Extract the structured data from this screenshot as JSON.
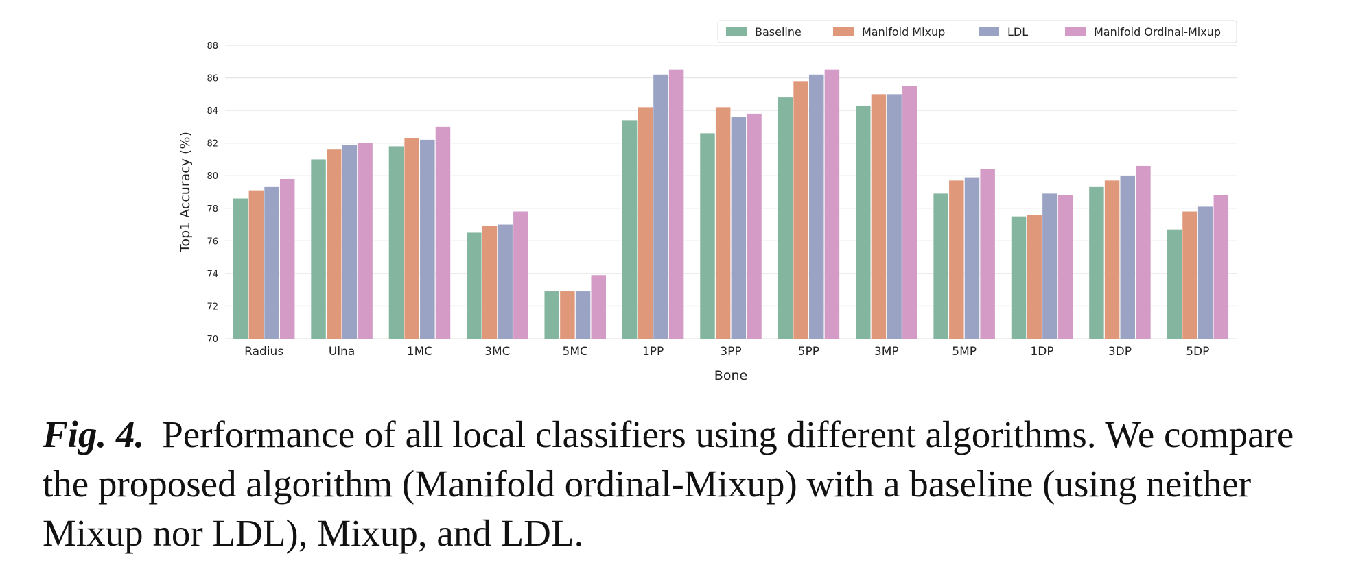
{
  "chart_data": {
    "type": "bar",
    "title": "",
    "xlabel": "Bone",
    "ylabel": "Top1 Accuracy (%)",
    "ylim": [
      70,
      88
    ],
    "yticks": [
      70,
      72,
      74,
      76,
      78,
      80,
      82,
      84,
      86,
      88
    ],
    "grid": true,
    "legend_position": "top-right",
    "categories": [
      "Radius",
      "Ulna",
      "1MC",
      "3MC",
      "5MC",
      "1PP",
      "3PP",
      "5PP",
      "3MP",
      "5MP",
      "1DP",
      "3DP",
      "5DP"
    ],
    "series": [
      {
        "name": "Baseline",
        "color": "#84b59e",
        "values": [
          78.6,
          81.0,
          81.8,
          76.5,
          72.9,
          83.4,
          82.6,
          84.8,
          84.3,
          78.9,
          77.5,
          79.3,
          76.7
        ]
      },
      {
        "name": "Manifold Mixup",
        "color": "#e0987a",
        "values": [
          79.1,
          81.6,
          82.3,
          76.9,
          72.9,
          84.2,
          84.2,
          85.8,
          85.0,
          79.7,
          77.6,
          79.7,
          77.8
        ]
      },
      {
        "name": "LDL",
        "color": "#9aa3c4",
        "values": [
          79.3,
          81.9,
          82.2,
          77.0,
          72.9,
          86.2,
          83.6,
          86.2,
          85.0,
          79.9,
          78.9,
          80.0,
          78.1
        ]
      },
      {
        "name": "Manifold Ordinal-Mixup",
        "color": "#d39bc6",
        "values": [
          79.8,
          82.0,
          83.0,
          77.8,
          73.9,
          86.5,
          83.8,
          86.5,
          85.5,
          80.4,
          78.8,
          80.6,
          78.8
        ]
      }
    ]
  },
  "caption": {
    "label": "Fig. 4.",
    "text": "Performance of all local classifiers using different algorithms. We compare the proposed algorithm (Manifold ordinal-Mixup) with a baseline (using neither Mixup nor LDL), Mixup, and LDL."
  }
}
